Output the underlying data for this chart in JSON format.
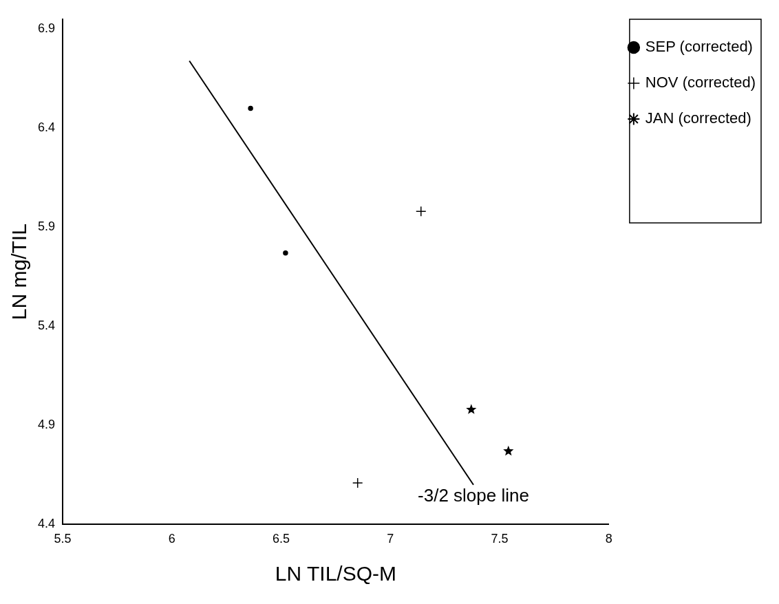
{
  "chart_data": {
    "type": "scatter",
    "xlabel": "LN TIL/SQ-M",
    "ylabel": "LN mg/TIL",
    "xlim": [
      5.5,
      8
    ],
    "xticks": [
      5.5,
      6,
      6.5,
      7,
      7.5,
      8
    ],
    "ylim": [
      4.4,
      6.95
    ],
    "yticks": [
      4.4,
      4.9,
      5.4,
      5.9,
      6.4,
      6.9
    ],
    "grid": false,
    "legend": "top right",
    "series": [
      {
        "name": "SEP (corrected)",
        "color": "#000000",
        "marker": "circle",
        "x": [
          6.36,
          6.52
        ],
        "values": [
          6.5,
          5.77
        ]
      },
      {
        "name": "NOV (corrected)",
        "color": "#000000",
        "marker": "cross",
        "x": [
          7.14,
          6.85
        ],
        "values": [
          5.98,
          4.61
        ]
      },
      {
        "name": "JAN (corrected)",
        "color": "#000000",
        "marker": "star",
        "x": [
          7.37,
          7.54
        ],
        "values": [
          4.98,
          4.77
        ]
      },
      {
        "type": "line",
        "color": "#000000",
        "marker": "none",
        "line_style": "solid",
        "x": [
          6.08,
          7.38
        ],
        "values": [
          6.74,
          4.6
        ]
      }
    ],
    "annotations": [
      {
        "text": "-3/2 slope line",
        "x": 7.38,
        "y": 4.6
      }
    ]
  }
}
